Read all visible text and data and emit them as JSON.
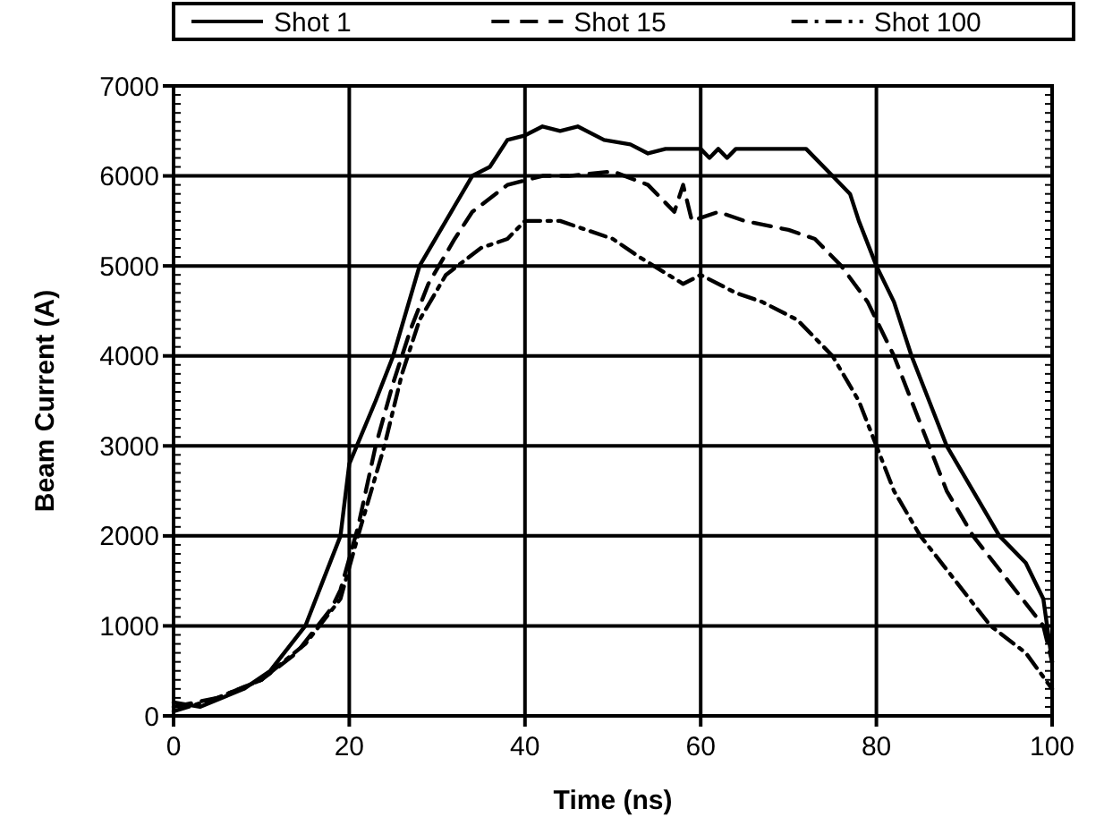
{
  "chart_data": {
    "type": "line",
    "xlabel": "Time (ns)",
    "ylabel": "Beam Current (A)",
    "xlim": [
      0,
      100
    ],
    "xticks": [
      0,
      20,
      40,
      60,
      80,
      100
    ],
    "ylim": [
      0,
      7000
    ],
    "yticks": [
      0,
      1000,
      2000,
      3000,
      4000,
      5000,
      6000,
      7000
    ],
    "grid": true,
    "legend": "top",
    "series": [
      {
        "name": "Shot 1",
        "color": "#000000",
        "line_style": "solid",
        "x": [
          0,
          3,
          8,
          11,
          15,
          17,
          19,
          20,
          23,
          25,
          28,
          31,
          34,
          36,
          38,
          40,
          42,
          44,
          46,
          49,
          52,
          54,
          56,
          60,
          61,
          62,
          63,
          64,
          70,
          72,
          75,
          77,
          78,
          80,
          82,
          84,
          86,
          88,
          91,
          94,
          97,
          99,
          100
        ],
        "values": [
          150,
          100,
          300,
          500,
          1000,
          1500,
          2000,
          2800,
          3500,
          4000,
          5000,
          5500,
          6000,
          6100,
          6400,
          6450,
          6550,
          6500,
          6550,
          6400,
          6350,
          6250,
          6300,
          6300,
          6200,
          6300,
          6200,
          6300,
          6300,
          6300,
          6000,
          5800,
          5500,
          5000,
          4600,
          4000,
          3500,
          3000,
          2500,
          2000,
          1700,
          1300,
          600
        ]
      },
      {
        "name": "Shot 15",
        "color": "#000000",
        "line_style": "dashed",
        "x": [
          0,
          5,
          10,
          14,
          18,
          19,
          21,
          23,
          25,
          27,
          29,
          32,
          34,
          38,
          42,
          45,
          50,
          54,
          57,
          58,
          59,
          62,
          65,
          70,
          73,
          76,
          79,
          82,
          84,
          86,
          88,
          91,
          95,
          99,
          100
        ],
        "values": [
          100,
          200,
          400,
          700,
          1200,
          1400,
          2100,
          3000,
          3700,
          4300,
          4800,
          5300,
          5600,
          5900,
          6000,
          6000,
          6050,
          5900,
          5600,
          5900,
          5500,
          5600,
          5500,
          5400,
          5300,
          5000,
          4600,
          4000,
          3500,
          3000,
          2500,
          2000,
          1500,
          1000,
          600
        ]
      },
      {
        "name": "Shot 100",
        "color": "#000000",
        "line_style": "dashdot",
        "x": [
          0,
          5,
          10,
          15,
          19,
          21,
          24,
          26,
          28,
          31,
          35,
          38,
          40,
          44,
          50,
          53,
          58,
          60,
          64,
          67,
          71,
          75,
          78,
          80,
          82,
          85,
          89,
          93,
          97,
          100
        ],
        "values": [
          50,
          200,
          400,
          800,
          1300,
          2000,
          3000,
          3800,
          4400,
          4900,
          5200,
          5300,
          5500,
          5500,
          5300,
          5100,
          4800,
          4900,
          4700,
          4600,
          4400,
          4000,
          3500,
          3000,
          2500,
          2000,
          1500,
          1000,
          700,
          300
        ]
      }
    ]
  }
}
